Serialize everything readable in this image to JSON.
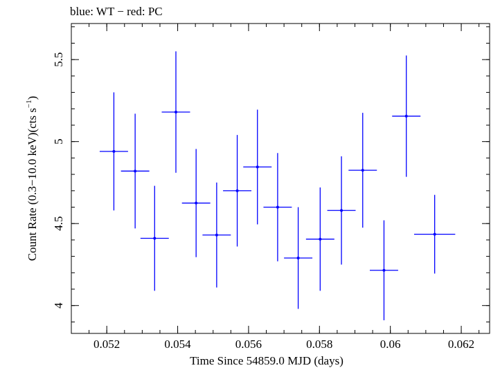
{
  "chart_data": {
    "type": "scatter",
    "title": "blue: WT − red: PC",
    "xlabel": "Time Since 54859.0 MJD (days)",
    "ylabel_main": "Count Rate (0.3−10.0 keV)(cts s",
    "ylabel_sup": "−1",
    "ylabel_end": ")",
    "xlim": [
      0.051,
      0.0628
    ],
    "ylim": [
      3.83,
      5.72
    ],
    "x_ticks": [
      {
        "value": 0.052,
        "label": "0.052"
      },
      {
        "value": 0.054,
        "label": "0.054"
      },
      {
        "value": 0.056,
        "label": "0.056"
      },
      {
        "value": 0.058,
        "label": "0.058"
      },
      {
        "value": 0.06,
        "label": "0.06"
      },
      {
        "value": 0.062,
        "label": "0.062"
      }
    ],
    "y_ticks": [
      {
        "value": 4,
        "label": "4"
      },
      {
        "value": 4.5,
        "label": "4.5"
      },
      {
        "value": 5,
        "label": "5"
      },
      {
        "value": 5.5,
        "label": "5.5"
      }
    ],
    "x_minor_step": 0.0005,
    "y_minor_step": 0.1,
    "color": "#0000ff",
    "series": [
      {
        "name": "WT",
        "points": [
          {
            "x": 0.0522,
            "y": 4.94,
            "xerr": 0.0004,
            "yerr": 0.36
          },
          {
            "x": 0.0528,
            "y": 4.82,
            "xerr": 0.0004,
            "yerr": 0.35
          },
          {
            "x": 0.05335,
            "y": 4.41,
            "xerr": 0.0004,
            "yerr": 0.32
          },
          {
            "x": 0.05395,
            "y": 5.18,
            "xerr": 0.0004,
            "yerr": 0.37
          },
          {
            "x": 0.05452,
            "y": 4.625,
            "xerr": 0.0004,
            "yerr": 0.33
          },
          {
            "x": 0.0551,
            "y": 4.43,
            "xerr": 0.0004,
            "yerr": 0.32
          },
          {
            "x": 0.05568,
            "y": 4.7,
            "xerr": 0.0004,
            "yerr": 0.34
          },
          {
            "x": 0.05625,
            "y": 4.845,
            "xerr": 0.0004,
            "yerr": 0.35
          },
          {
            "x": 0.05682,
            "y": 4.6,
            "xerr": 0.0004,
            "yerr": 0.33
          },
          {
            "x": 0.0574,
            "y": 4.29,
            "xerr": 0.0004,
            "yerr": 0.31
          },
          {
            "x": 0.05802,
            "y": 4.405,
            "xerr": 0.0004,
            "yerr": 0.315
          },
          {
            "x": 0.05862,
            "y": 4.58,
            "xerr": 0.0004,
            "yerr": 0.33
          },
          {
            "x": 0.05922,
            "y": 4.825,
            "xerr": 0.0004,
            "yerr": 0.35
          },
          {
            "x": 0.05982,
            "y": 4.215,
            "xerr": 0.0004,
            "yerr": 0.305
          },
          {
            "x": 0.06045,
            "y": 5.155,
            "xerr": 0.0004,
            "yerr": 0.37
          },
          {
            "x": 0.06125,
            "y": 4.435,
            "xerr": 0.00058,
            "yerr": 0.24
          }
        ]
      }
    ]
  }
}
